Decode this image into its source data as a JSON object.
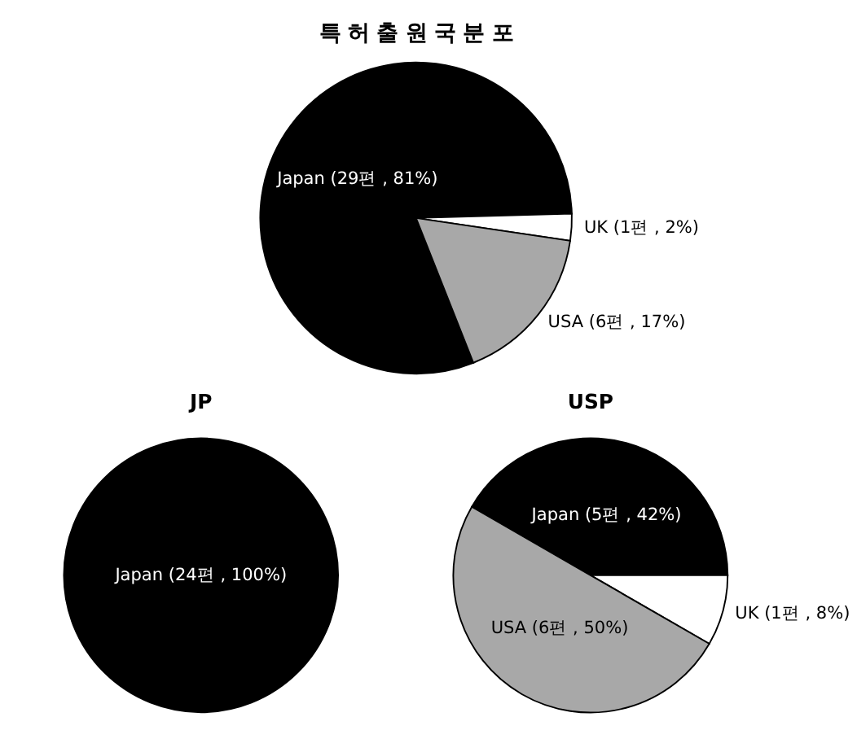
{
  "chart_data": [
    {
      "type": "pie",
      "title": "특 허 출 원 국 분 포",
      "categories": [
        "Japan",
        "UK",
        "USA"
      ],
      "values": [
        29,
        1,
        6
      ],
      "colors": [
        "#000000",
        "#ffffff",
        "#a8a8a8"
      ],
      "value_labels": [
        "(29편 , 81%)",
        "(1편 , 2%)",
        "(6편 , 17%)"
      ]
    },
    {
      "type": "pie",
      "title": "JP",
      "categories": [
        "Japan"
      ],
      "values": [
        24
      ],
      "colors": [
        "#000000"
      ],
      "value_labels": [
        "(24편 , 100%)"
      ]
    },
    {
      "type": "pie",
      "title": "USP",
      "categories": [
        "Japan",
        "UK",
        "USA"
      ],
      "values": [
        5,
        1,
        6
      ],
      "colors": [
        "#000000",
        "#ffffff",
        "#a8a8a8"
      ],
      "value_labels": [
        "(5편 , 42%)",
        "(1편 , 8%)",
        "(6편 , 50%)"
      ]
    }
  ]
}
